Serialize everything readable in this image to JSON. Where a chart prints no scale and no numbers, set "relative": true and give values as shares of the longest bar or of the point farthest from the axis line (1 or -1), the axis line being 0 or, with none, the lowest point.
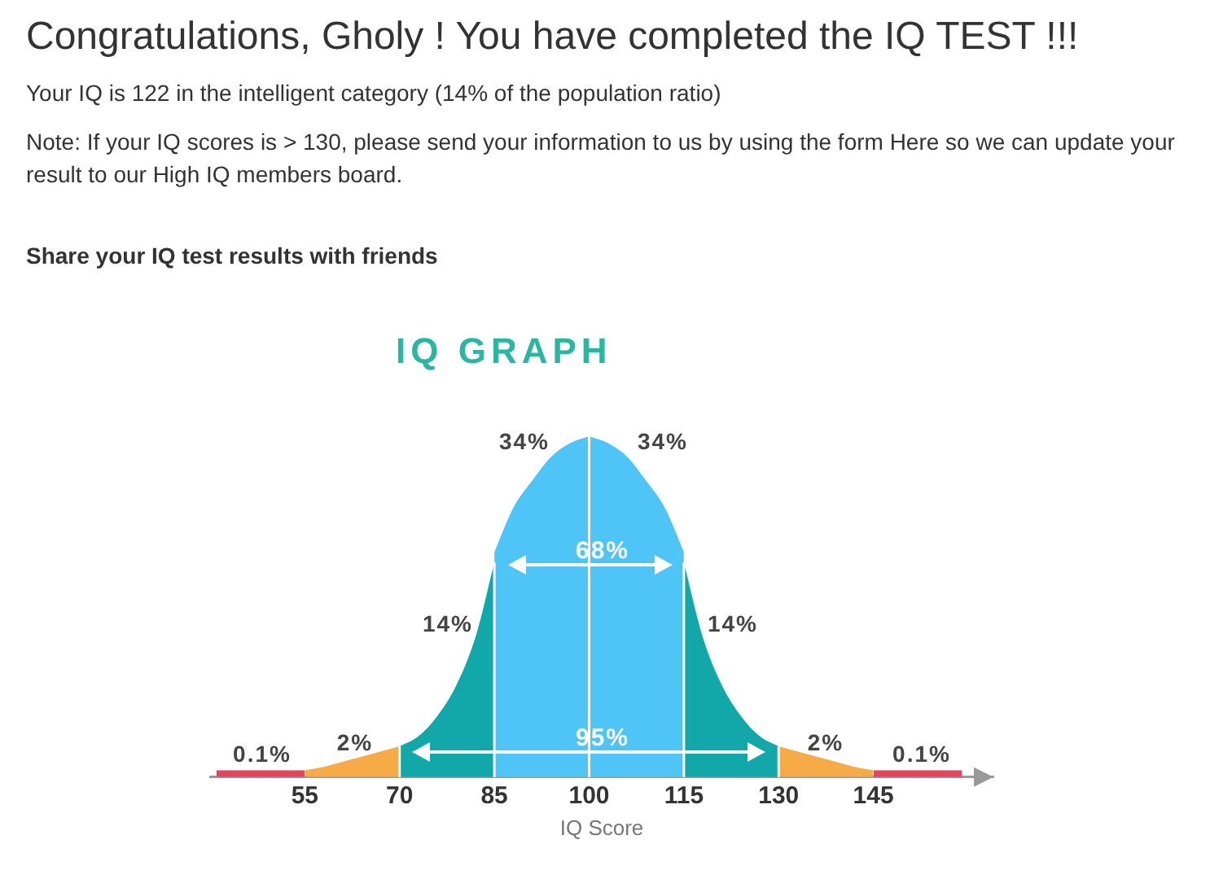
{
  "chart_data": {
    "type": "area",
    "title": "IQ GRAPH",
    "xlabel": "IQ Score",
    "relative": true,
    "xlim": [
      40,
      164
    ],
    "xticks": [
      55,
      70,
      85,
      100,
      115,
      130,
      145
    ],
    "series": [
      {
        "color": "#e2455e",
        "x": [
          41,
          55
        ],
        "values": [
          0.02,
          0.02
        ]
      },
      {
        "color": "#f7ab47",
        "x": [
          55,
          58,
          62,
          66,
          70
        ],
        "values": [
          0.02,
          0.03,
          0.05,
          0.07,
          0.09
        ]
      },
      {
        "color": "#12a7a8",
        "x": [
          70,
          73,
          76,
          79,
          82,
          85
        ],
        "values": [
          0.09,
          0.12,
          0.18,
          0.27,
          0.41,
          0.63
        ]
      },
      {
        "color": "#4fc4f6",
        "x": [
          85,
          88,
          91,
          94,
          97,
          100
        ],
        "values": [
          0.66,
          0.79,
          0.87,
          0.94,
          0.98,
          1
        ]
      },
      {
        "color": "#4fc4f6",
        "x": [
          100,
          103,
          106,
          109,
          112,
          115
        ],
        "values": [
          1,
          0.98,
          0.94,
          0.87,
          0.79,
          0.66
        ]
      },
      {
        "color": "#12a7a8",
        "x": [
          115,
          118,
          121,
          124,
          127,
          130
        ],
        "values": [
          0.63,
          0.41,
          0.27,
          0.18,
          0.12,
          0.09
        ]
      },
      {
        "color": "#f7ab47",
        "x": [
          130,
          134,
          138,
          142,
          145
        ],
        "values": [
          0.09,
          0.07,
          0.05,
          0.03,
          0.02
        ]
      },
      {
        "color": "#e2455e",
        "x": [
          145,
          159
        ],
        "values": [
          0.02,
          0.02
        ]
      }
    ],
    "ref_lines": [
      {
        "axis": "x",
        "value": 70,
        "color": "#ffffff"
      },
      {
        "axis": "x",
        "value": 85,
        "color": "#ffffff"
      },
      {
        "axis": "x",
        "value": 100,
        "color": "#ffffff"
      },
      {
        "axis": "x",
        "value": 115,
        "color": "#ffffff"
      },
      {
        "axis": "x",
        "value": 130,
        "color": "#ffffff"
      }
    ],
    "annotations": [
      "Congratulations, Gholy ! You have completed the IQ TEST !!!",
      "Your IQ is 122 in the intelligent category (14% of the population ratio)",
      "Note: If your IQ scores is > 130, please send your information to us by using the form Here so we can update your result to our High IQ members board.",
      "Share your IQ test results with friends",
      "0.1%",
      "2%",
      "14%",
      "34%",
      "34%",
      "14%",
      "2%",
      "0.1%",
      "68%",
      "95%"
    ]
  }
}
